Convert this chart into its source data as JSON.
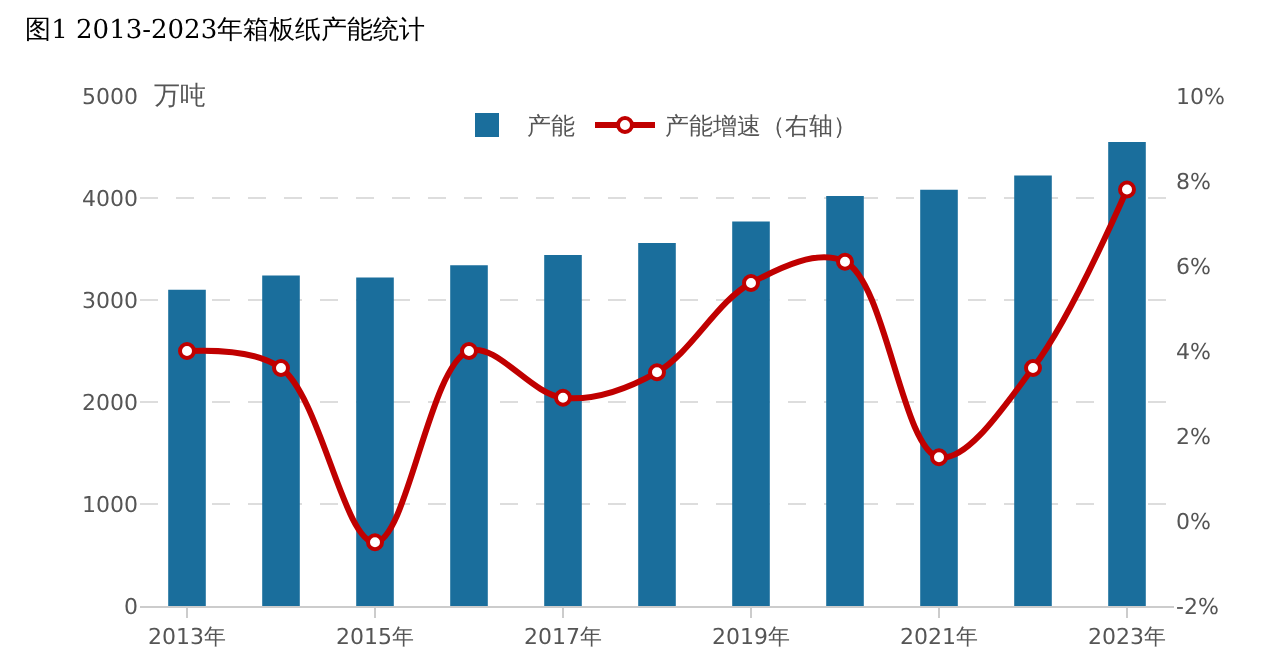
{
  "chart_data": {
    "type": "bar",
    "title": "图1 2013-2023年箱板纸产能统计",
    "ylabel": "万吨",
    "categories": [
      "2013年",
      null,
      "2015年",
      null,
      "2017年",
      null,
      "2019年",
      null,
      "2021年",
      null,
      "2023年"
    ],
    "series": [
      {
        "name": "产能",
        "color": "#1a6e9c",
        "values": [
          3100,
          3240,
          3220,
          3340,
          3440,
          3560,
          3770,
          4020,
          4080,
          4220,
          4550
        ]
      },
      {
        "name": "产能增速（右轴）",
        "type": "line",
        "axis": "y2",
        "color": "#c00000",
        "marker": "circle",
        "values": [
          4.0,
          3.6,
          -0.5,
          4.0,
          2.9,
          3.5,
          5.6,
          6.1,
          1.5,
          3.6,
          7.8
        ]
      }
    ],
    "ylim": [
      0,
      5000
    ],
    "yticks": [
      0,
      1000,
      2000,
      3000,
      4000,
      5000
    ],
    "y2lim": [
      -2,
      10
    ],
    "y2ticks": [
      {
        "value": -2,
        "label": "-2%"
      },
      {
        "value": 0,
        "label": "0%"
      },
      {
        "value": 2,
        "label": "2%"
      },
      {
        "value": 4,
        "label": "4%"
      },
      {
        "value": 6,
        "label": "6%"
      },
      {
        "value": 8,
        "label": "8%"
      },
      {
        "value": 10,
        "label": "10%"
      }
    ],
    "grid": "y",
    "legend": "top"
  }
}
